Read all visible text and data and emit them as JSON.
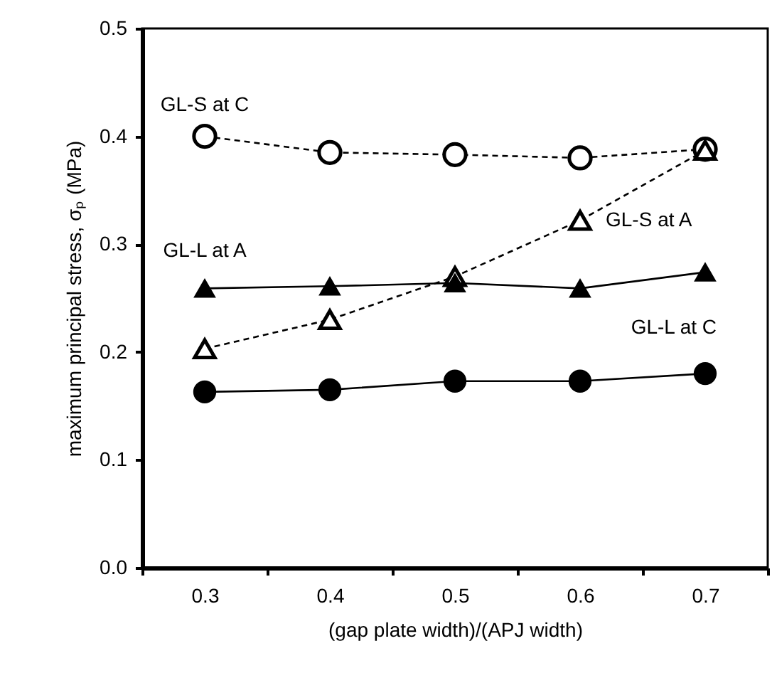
{
  "chart_data": {
    "type": "line",
    "xlabel": "(gap plate width)/(APJ width)",
    "ylabel": "maximum principal stress, σₚ (MPa)",
    "categories": [
      "0.3",
      "0.4",
      "0.5",
      "0.6",
      "0.7"
    ],
    "series": [
      {
        "name": "GL-S at C",
        "color": "#000000",
        "marker": "circle",
        "line_style": "dashed",
        "values": [
          0.4,
          0.385,
          0.383,
          0.38,
          0.388
        ]
      },
      {
        "name": "GL-S at A",
        "color": "#000000",
        "marker": "triangle",
        "line_style": "dashed",
        "values": [
          0.203,
          0.23,
          0.27,
          0.322,
          0.387
        ]
      },
      {
        "name": "GL-L at A",
        "color": "#000000",
        "marker": "triangle",
        "line_style": "solid",
        "values": [
          0.259,
          0.261,
          0.264,
          0.259,
          0.274
        ]
      },
      {
        "name": "GL-L at C",
        "color": "#000000",
        "marker": "circle",
        "line_style": "solid",
        "values": [
          0.163,
          0.165,
          0.173,
          0.173,
          0.18
        ]
      }
    ],
    "ylim": [
      0,
      0.5
    ],
    "yticks": [
      {
        "value": 0,
        "label": "0.0"
      },
      0.1,
      0.2,
      0.3,
      0.4,
      0.5
    ],
    "grid": false,
    "legend": false
  }
}
